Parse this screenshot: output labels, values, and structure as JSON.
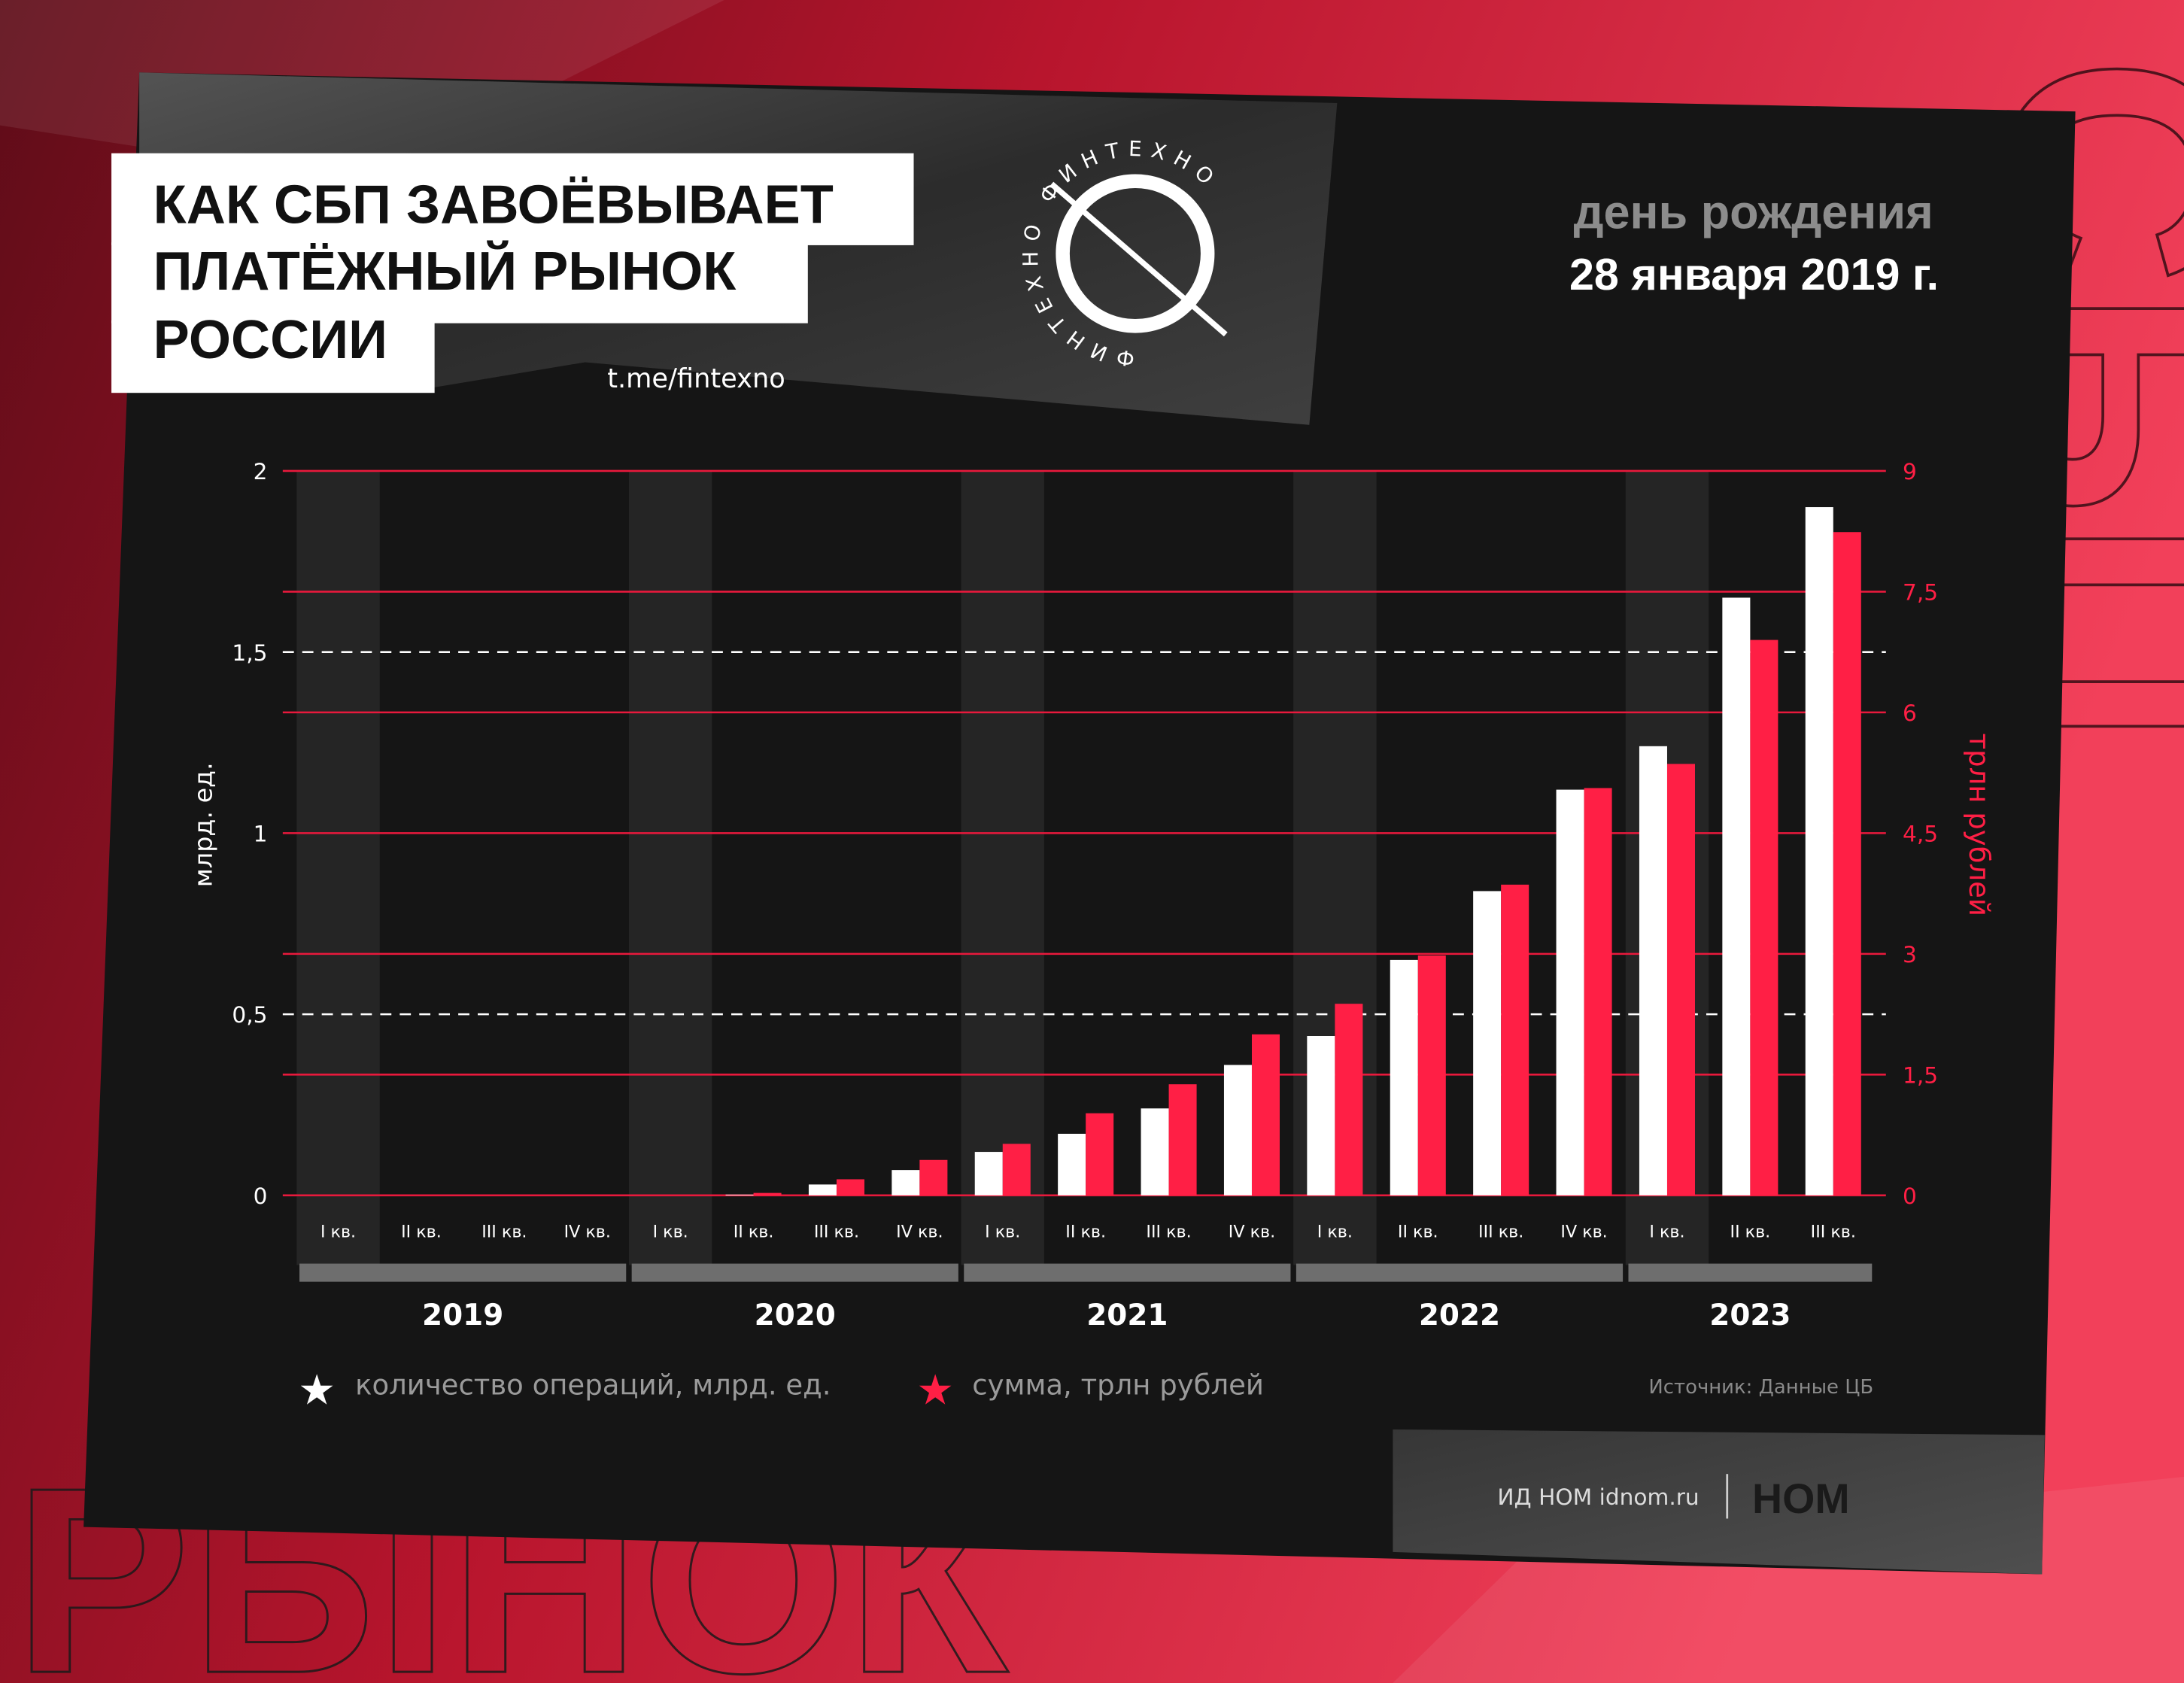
{
  "title_lines": [
    "КАК СБП ЗАВОЁВЫВАЕТ",
    "ПЛАТЁЖНЫЙ РЫНОК",
    "РОССИИ"
  ],
  "telegram": "t.me/fintexno",
  "logo_ring_text": "ФИНТЕХНО ФИНТЕХНО",
  "birthday": {
    "label": "день рождения",
    "date": "28 января 2019 г."
  },
  "background_words": {
    "bottom": "РЫНОК",
    "side": "СБП"
  },
  "legend": {
    "count": "количество операций, млрд. ед.",
    "sum": "сумма, трлн рублей"
  },
  "source": "Источник: Данные ЦБ",
  "footer": {
    "site": "ИД НОМ idnom.ru",
    "logo": "НОМ"
  },
  "colors": {
    "count": "#ffffff",
    "sum": "#ff1f45",
    "panel": "#1a1a1a",
    "accent": "#e8193c"
  },
  "chart_data": {
    "type": "bar",
    "ylabel_left": "млрд. ед.",
    "ylabel_right": "трлн рублей",
    "ylim_left": [
      0,
      2
    ],
    "ylim_right": [
      0,
      9
    ],
    "yticks_left": [
      "0",
      "0,5",
      "1",
      "1,5",
      "2"
    ],
    "yticks_right": [
      "0",
      "1,5",
      "3",
      "4,5",
      "6",
      "7,5",
      "9"
    ],
    "years": [
      "2019",
      "2020",
      "2021",
      "2022",
      "2023"
    ],
    "categories": [
      "I кв.",
      "II кв.",
      "III кв.",
      "IV кв.",
      "I кв.",
      "II кв.",
      "III кв.",
      "IV кв.",
      "I кв.",
      "II кв.",
      "III кв.",
      "IV кв.",
      "I кв.",
      "II кв.",
      "III кв.",
      "IV кв.",
      "I кв.",
      "II кв.",
      "III кв."
    ],
    "series": [
      {
        "name": "количество операций, млрд. ед.",
        "axis": "left",
        "values": [
          0,
          0,
          0,
          0,
          0,
          0.002,
          0.03,
          0.07,
          0.12,
          0.17,
          0.24,
          0.36,
          0.44,
          0.65,
          0.84,
          1.12,
          1.24,
          1.65,
          1.9
        ]
      },
      {
        "name": "сумма, трлн рублей",
        "axis": "right",
        "values": [
          0,
          0,
          0,
          0,
          0,
          0.03,
          0.2,
          0.44,
          0.64,
          1.02,
          1.38,
          2.0,
          2.38,
          2.98,
          3.86,
          5.06,
          5.36,
          6.9,
          8.24
        ]
      }
    ]
  }
}
